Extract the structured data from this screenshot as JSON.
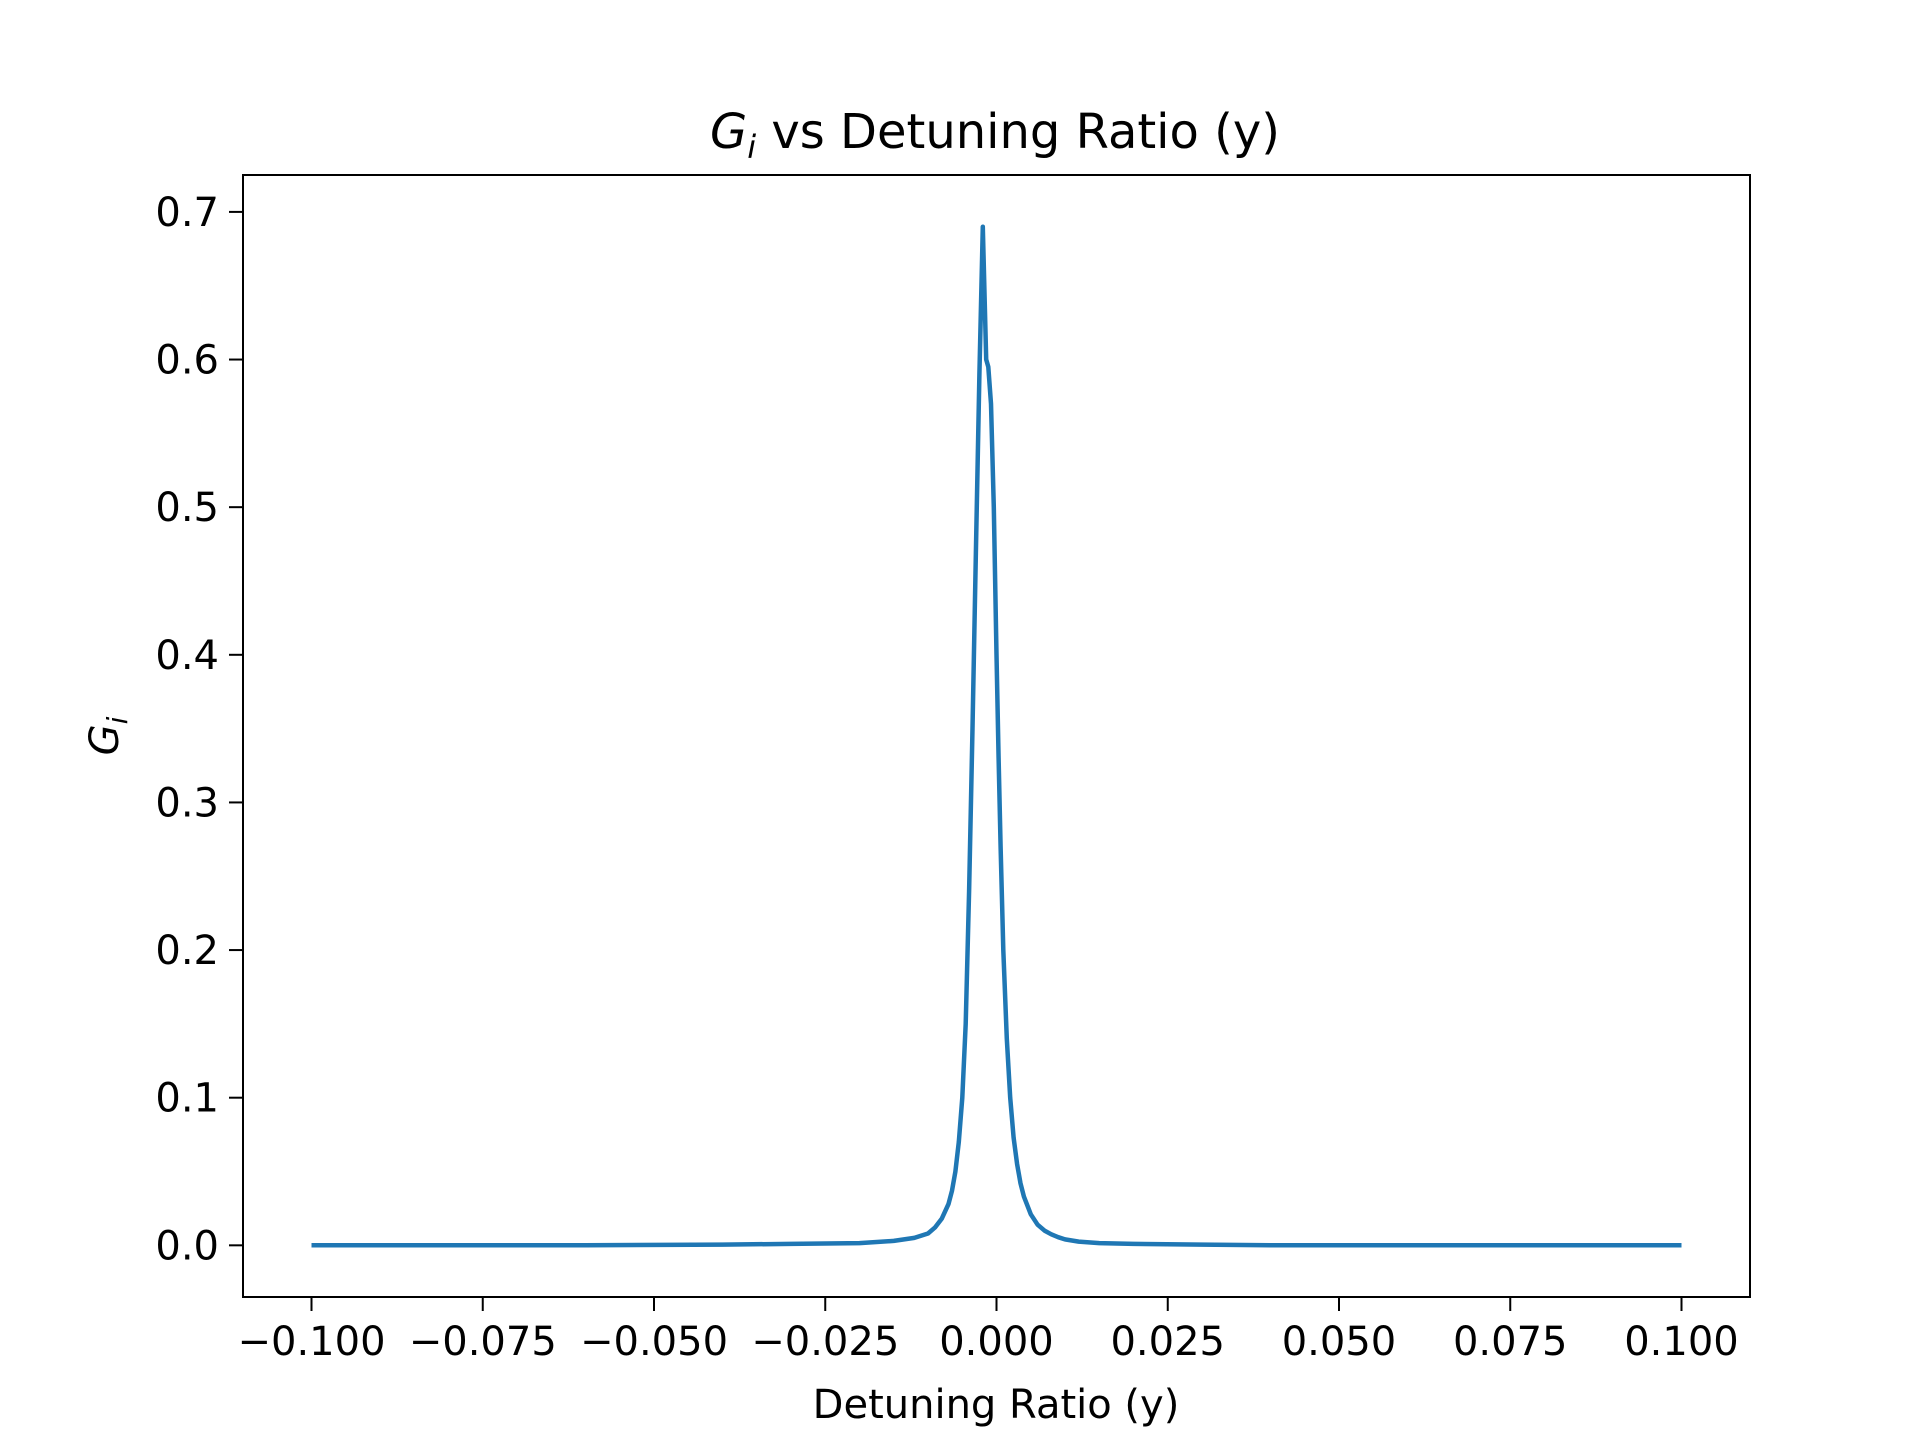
{
  "chart_data": {
    "type": "line",
    "title": "Gi vs Detuning Ratio (y)",
    "title_parts": {
      "symbol": "G",
      "subscript": "i",
      "rest": " vs Detuning Ratio (y)"
    },
    "xlabel": "Detuning Ratio (y)",
    "ylabel": "Gi",
    "ylabel_parts": {
      "symbol": "G",
      "subscript": "i"
    },
    "xlim": [
      -0.11,
      0.11
    ],
    "ylim": [
      -0.035,
      0.725
    ],
    "xticks": [
      -0.1,
      -0.075,
      -0.05,
      -0.025,
      0.0,
      0.025,
      0.05,
      0.075,
      0.1
    ],
    "xtick_labels": [
      "−0.100",
      "−0.075",
      "−0.050",
      "−0.025",
      "0.000",
      "0.025",
      "0.050",
      "0.075",
      "0.100"
    ],
    "yticks": [
      0.0,
      0.1,
      0.2,
      0.3,
      0.4,
      0.5,
      0.6,
      0.7
    ],
    "ytick_labels": [
      "0.0",
      "0.1",
      "0.2",
      "0.3",
      "0.4",
      "0.5",
      "0.6",
      "0.7"
    ],
    "grid": false,
    "series": [
      {
        "color": "#1f77b4",
        "x": [
          -0.1,
          -0.08,
          -0.06,
          -0.04,
          -0.03,
          -0.02,
          -0.015,
          -0.012,
          -0.01,
          -0.009,
          -0.008,
          -0.007,
          -0.0065,
          -0.006,
          -0.0055,
          -0.005,
          -0.0045,
          -0.004,
          -0.0035,
          -0.003,
          -0.0025,
          -0.002,
          -0.0015,
          -0.0012,
          -0.0008,
          -0.0004,
          0.0,
          0.0003,
          0.0006,
          0.001,
          0.0015,
          0.002,
          0.0025,
          0.003,
          0.0035,
          0.004,
          0.005,
          0.006,
          0.007,
          0.008,
          0.009,
          0.01,
          0.012,
          0.015,
          0.02,
          0.03,
          0.04,
          0.06,
          0.08,
          0.1
        ],
        "y": [
          0.0,
          0.0,
          0.0,
          0.0005,
          0.001,
          0.0015,
          0.003,
          0.005,
          0.008,
          0.012,
          0.018,
          0.028,
          0.037,
          0.05,
          0.07,
          0.1,
          0.15,
          0.24,
          0.35,
          0.47,
          0.59,
          0.69,
          0.6,
          0.595,
          0.57,
          0.5,
          0.4,
          0.33,
          0.27,
          0.2,
          0.14,
          0.1,
          0.073,
          0.055,
          0.042,
          0.033,
          0.021,
          0.014,
          0.01,
          0.0075,
          0.0055,
          0.004,
          0.0025,
          0.0015,
          0.001,
          0.0005,
          0.0,
          0.0,
          0.0,
          0.0
        ]
      }
    ]
  }
}
